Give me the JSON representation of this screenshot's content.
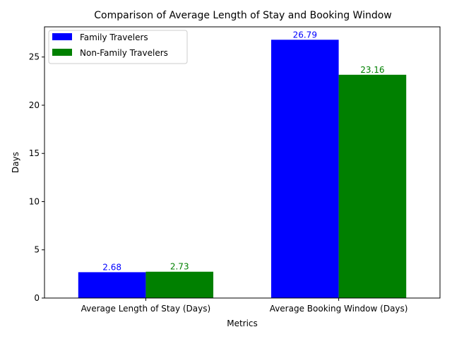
{
  "chart_data": {
    "type": "bar",
    "title": "Comparison of Average Length of Stay and Booking Window",
    "xlabel": "Metrics",
    "ylabel": "Days",
    "categories": [
      "Average Length of Stay (Days)",
      "Average Booking Window (Days)"
    ],
    "series": [
      {
        "name": "Family Travelers",
        "color": "#0000ff",
        "values": [
          2.68,
          26.79
        ],
        "labels": [
          "2.68",
          "26.79"
        ]
      },
      {
        "name": "Non-Family Travelers",
        "color": "#008000",
        "values": [
          2.73,
          23.16
        ],
        "labels": [
          "2.73",
          "23.16"
        ]
      }
    ],
    "ylim": [
      0,
      28.13
    ],
    "yticks": [
      0,
      5,
      10,
      15,
      20,
      25
    ],
    "grid": false,
    "legend": "top-left"
  }
}
